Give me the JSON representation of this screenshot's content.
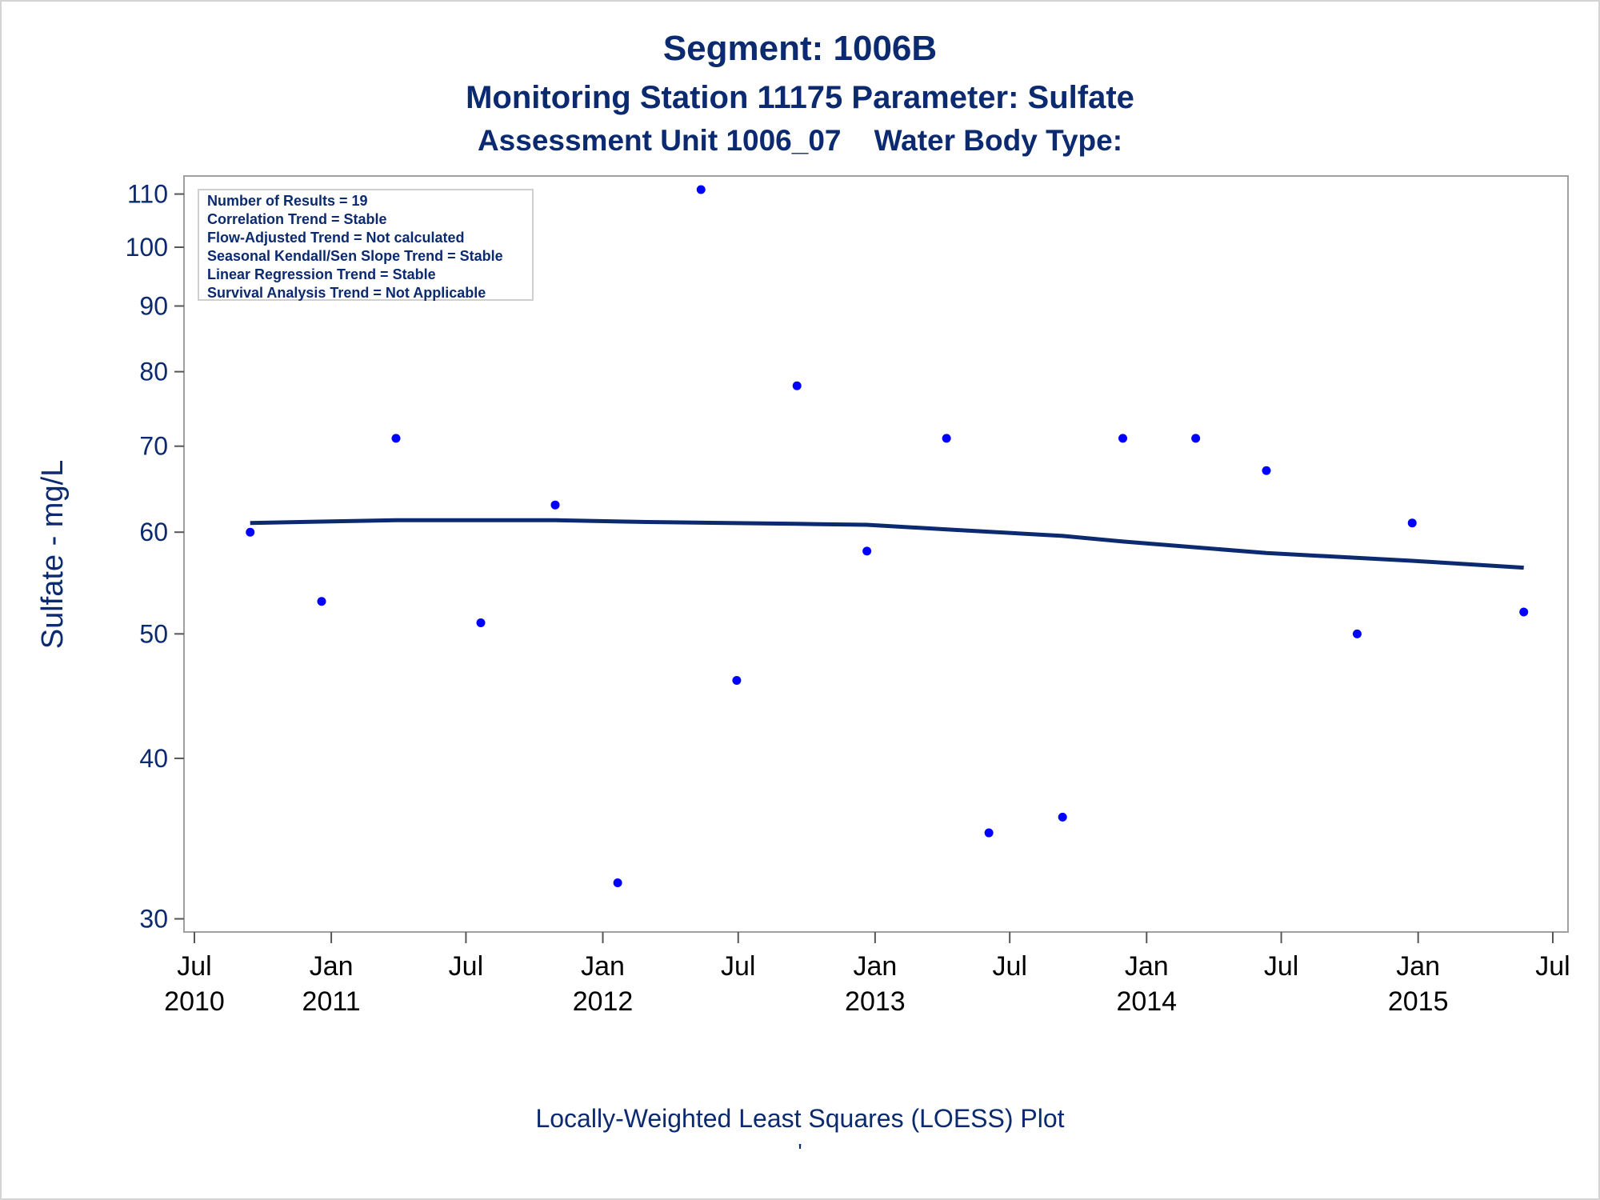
{
  "titles": {
    "line1": "Segment: 1006B",
    "line2": "Monitoring Station 11175 Parameter: Sulfate",
    "line3": "Assessment Unit 1006_07    Water Body Type:"
  },
  "stats": [
    "Number of Results = 19",
    "Correlation Trend = Stable",
    "Flow-Adjusted Trend = Not calculated",
    "Seasonal Kendall/Sen Slope Trend = Stable",
    "Linear Regression Trend = Stable",
    "Survival Analysis Trend = Not Applicable"
  ],
  "footnote": "Locally-Weighted Least Squares (LOESS) Plot",
  "footnote2": "'",
  "colors": {
    "text": "#0b2a6f",
    "points": "#0000ff",
    "loess": "#0b2a6f",
    "frame": "#a0a0a0"
  },
  "chart_data": {
    "type": "scatter",
    "y_scale": "log",
    "ylabel": "Sulfate - mg/L",
    "xlabel": "",
    "ylim": [
      29.3,
      112
    ],
    "xlim": [
      "2010-07-01",
      "2015-07-01"
    ],
    "y_ticks": [
      30,
      40,
      50,
      60,
      70,
      80,
      90,
      100,
      110
    ],
    "x_ticks": [
      {
        "date": "2010-07-01",
        "line1": "Jul",
        "line2": "2010"
      },
      {
        "date": "2011-01-01",
        "line1": "Jan",
        "line2": "2011"
      },
      {
        "date": "2011-07-01",
        "line1": "Jul",
        "line2": ""
      },
      {
        "date": "2012-01-01",
        "line1": "Jan",
        "line2": "2012"
      },
      {
        "date": "2012-07-01",
        "line1": "Jul",
        "line2": ""
      },
      {
        "date": "2013-01-01",
        "line1": "Jan",
        "line2": "2013"
      },
      {
        "date": "2013-07-01",
        "line1": "Jul",
        "line2": ""
      },
      {
        "date": "2014-01-01",
        "line1": "Jan",
        "line2": "2014"
      },
      {
        "date": "2014-07-01",
        "line1": "Jul",
        "line2": ""
      },
      {
        "date": "2015-01-01",
        "line1": "Jan",
        "line2": "2015"
      },
      {
        "date": "2015-07-01",
        "line1": "Jul",
        "line2": ""
      }
    ],
    "points": [
      {
        "date": "2010-09-14",
        "y": 60
      },
      {
        "date": "2010-12-19",
        "y": 53
      },
      {
        "date": "2011-03-29",
        "y": 71
      },
      {
        "date": "2011-07-21",
        "y": 51
      },
      {
        "date": "2011-10-29",
        "y": 63
      },
      {
        "date": "2012-01-21",
        "y": 32
      },
      {
        "date": "2012-05-12",
        "y": 113
      },
      {
        "date": "2012-06-29",
        "y": 46
      },
      {
        "date": "2012-09-18",
        "y": 78
      },
      {
        "date": "2012-12-21",
        "y": 58
      },
      {
        "date": "2013-04-07",
        "y": 71
      },
      {
        "date": "2013-06-03",
        "y": 35
      },
      {
        "date": "2013-09-10",
        "y": 36
      },
      {
        "date": "2013-11-30",
        "y": 71
      },
      {
        "date": "2014-03-08",
        "y": 71
      },
      {
        "date": "2014-06-11",
        "y": 67
      },
      {
        "date": "2014-10-11",
        "y": 50
      },
      {
        "date": "2014-12-24",
        "y": 61
      },
      {
        "date": "2015-05-23",
        "y": 52
      }
    ],
    "loess": [
      {
        "date": "2010-09-14",
        "y": 61.0
      },
      {
        "date": "2011-03-29",
        "y": 61.3
      },
      {
        "date": "2011-10-29",
        "y": 61.3
      },
      {
        "date": "2012-03-01",
        "y": 61.1
      },
      {
        "date": "2012-09-18",
        "y": 60.9
      },
      {
        "date": "2012-12-21",
        "y": 60.8
      },
      {
        "date": "2013-04-07",
        "y": 60.3
      },
      {
        "date": "2013-09-10",
        "y": 59.6
      },
      {
        "date": "2013-11-30",
        "y": 59.0
      },
      {
        "date": "2014-06-11",
        "y": 57.8
      },
      {
        "date": "2014-12-24",
        "y": 57.0
      },
      {
        "date": "2015-05-23",
        "y": 56.3
      }
    ],
    "legend": "top-left"
  }
}
